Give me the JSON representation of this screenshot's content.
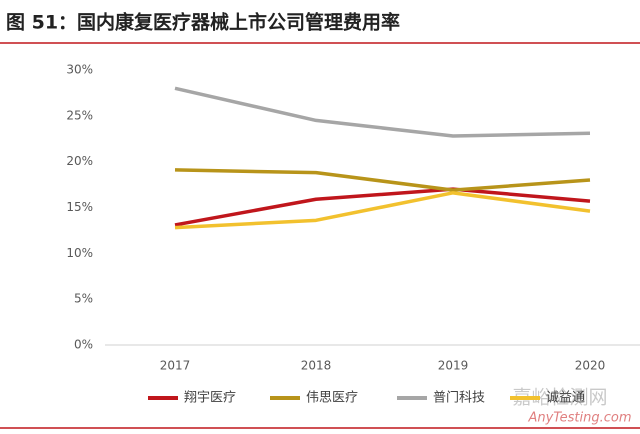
{
  "chart_data": {
    "type": "line",
    "title": "图 51：国内康复医疗器械上市公司管理费用率",
    "categories": [
      "2017",
      "2018",
      "2019",
      "2020"
    ],
    "series": [
      {
        "name": "翔宇医疗",
        "color": "#c0161c",
        "values": [
          13.1,
          15.9,
          17.0,
          15.7
        ]
      },
      {
        "name": "伟思医疗",
        "color": "#b8941a",
        "values": [
          19.1,
          18.8,
          16.9,
          18.0
        ]
      },
      {
        "name": "普门科技",
        "color": "#a6a6a6",
        "values": [
          28.0,
          24.5,
          22.8,
          23.1
        ]
      },
      {
        "name": "诚益通",
        "color": "#f2c12e",
        "values": [
          12.8,
          13.6,
          16.6,
          14.6
        ]
      }
    ],
    "ylim": [
      0,
      30
    ],
    "yticks": [
      {
        "value": 0,
        "label": "0%"
      },
      {
        "value": 5,
        "label": "5%"
      },
      {
        "value": 10,
        "label": "10%"
      },
      {
        "value": 15,
        "label": "15%"
      },
      {
        "value": 20,
        "label": "20%"
      },
      {
        "value": 25,
        "label": "25%"
      },
      {
        "value": 30,
        "label": "30%"
      }
    ],
    "grid": false,
    "legend": "bottom",
    "watermark": {
      "main": "嘉峪检测网",
      "sub": "AnyTesting.com"
    }
  }
}
